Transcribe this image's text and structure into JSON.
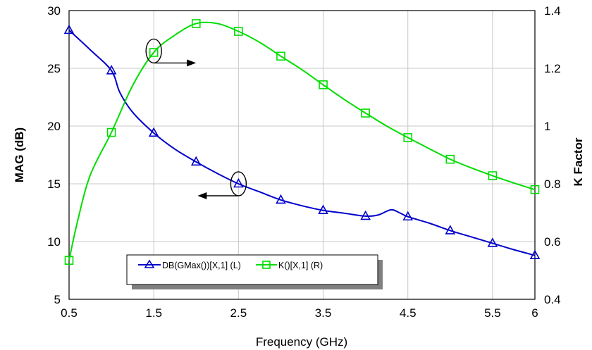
{
  "chart_data": {
    "type": "line",
    "title": "",
    "xlabel": "Frequency (GHz)",
    "ylabel_left": "MAG (dB)",
    "ylabel_right": "K Factor",
    "xlim": [
      0.5,
      6
    ],
    "ylim_left": [
      5,
      30
    ],
    "ylim_right": [
      0.4,
      1.4
    ],
    "x_ticks": [
      "0.5",
      "1.5",
      "2.5",
      "3.5",
      "4.5",
      "5.5",
      "6"
    ],
    "y_left_ticks": [
      "5",
      "10",
      "15",
      "20",
      "25",
      "30"
    ],
    "y_right_ticks": [
      "0.4",
      "0.6",
      "0.8",
      "1",
      "1.2",
      "1.4"
    ],
    "grid": true,
    "legend_position": "bottom-center",
    "series": [
      {
        "name": "DB(GMax())[X,1] (L)",
        "axis": "left",
        "color": "#0000cc",
        "marker": "triangle",
        "curve_x": [
          0.5,
          0.75,
          1.0,
          1.1,
          1.25,
          1.5,
          1.75,
          2.0,
          2.25,
          2.5,
          2.75,
          3.0,
          3.25,
          3.5,
          3.75,
          4.0,
          4.15,
          4.3,
          4.4,
          4.5,
          4.75,
          5.0,
          5.25,
          5.5,
          5.75,
          6.0
        ],
        "curve_y": [
          28.3,
          26.6,
          24.8,
          22.9,
          21.2,
          19.4,
          18.0,
          16.9,
          15.9,
          15.0,
          14.3,
          13.6,
          13.1,
          12.7,
          12.45,
          12.2,
          12.3,
          12.75,
          12.5,
          12.15,
          11.6,
          10.95,
          10.4,
          9.85,
          9.3,
          8.8
        ],
        "marker_x": [
          0.5,
          1.0,
          1.5,
          2.0,
          2.5,
          3.0,
          3.5,
          4.0,
          4.5,
          5.0,
          5.5,
          6.0
        ],
        "marker_y": [
          28.3,
          24.8,
          19.4,
          16.9,
          15.0,
          13.6,
          12.7,
          12.2,
          12.15,
          10.95,
          9.85,
          8.8
        ]
      },
      {
        "name": "K()[X,1] (R)",
        "axis": "right",
        "color": "#00dd00",
        "marker": "square",
        "curve_x": [
          0.5,
          0.6,
          0.75,
          1.0,
          1.25,
          1.5,
          1.75,
          2.0,
          2.25,
          2.5,
          2.75,
          3.0,
          3.25,
          3.5,
          3.75,
          4.0,
          4.25,
          4.5,
          4.75,
          5.0,
          5.25,
          5.5,
          5.75,
          6.0
        ],
        "curve_y": [
          0.535,
          0.67,
          0.83,
          0.978,
          1.14,
          1.255,
          1.315,
          1.355,
          1.355,
          1.328,
          1.29,
          1.242,
          1.195,
          1.143,
          1.092,
          1.045,
          1.0,
          0.96,
          0.922,
          0.885,
          0.855,
          0.828,
          0.803,
          0.78
        ],
        "marker_x": [
          0.5,
          1.0,
          1.5,
          2.0,
          2.5,
          3.0,
          3.5,
          4.0,
          4.5,
          5.0,
          5.5,
          6.0
        ],
        "marker_y": [
          0.535,
          0.978,
          1.255,
          1.355,
          1.328,
          1.242,
          1.143,
          1.045,
          0.96,
          0.885,
          0.828,
          0.78
        ]
      }
    ],
    "annotations": [
      {
        "type": "ellipse-arrow",
        "target_series": "K()[X,1] (R)",
        "at_x": 1.5,
        "at_y": 1.26,
        "direction": "right"
      },
      {
        "type": "ellipse-arrow",
        "target_series": "DB(GMax())[X,1] (L)",
        "at_x": 2.5,
        "at_y": 15.0,
        "direction": "left"
      }
    ]
  }
}
